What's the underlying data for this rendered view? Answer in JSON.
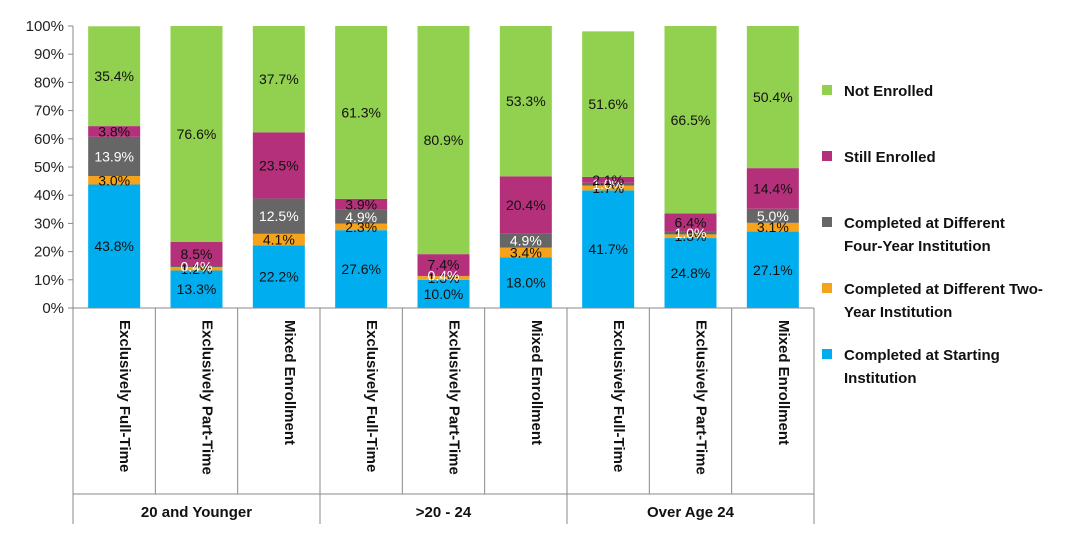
{
  "chart_data": {
    "type": "bar",
    "stacked": true,
    "y_tick_labels": [
      "0%",
      "10%",
      "20%",
      "30%",
      "40%",
      "50%",
      "60%",
      "70%",
      "80%",
      "90%",
      "100%"
    ],
    "ylim": [
      0,
      100
    ],
    "groups": [
      "20 and Younger",
      ">20 - 24",
      "Over Age 24"
    ],
    "categories": [
      "Exclusively Full-Time",
      "Exclusively Part-Time",
      "Mixed Enrollment",
      "Exclusively Full-Time",
      "Exclusively Part-Time",
      "Mixed Enrollment",
      "Exclusively Full-Time",
      "Exclusively Part-Time",
      "Mixed Enrollment"
    ],
    "series": [
      {
        "name": "Completed at Starting Institution",
        "color": "#00AEEF",
        "values": [
          43.8,
          13.3,
          22.2,
          27.6,
          10.0,
          18.0,
          41.7,
          24.8,
          27.1
        ],
        "labels": [
          "43.8%",
          "13.3%",
          "22.2%",
          "27.6%",
          "10.0%",
          "18.0%",
          "41.7%",
          "24.8%",
          "27.1%"
        ]
      },
      {
        "name": "Completed at Different Two-Year Institution",
        "color": "#F7A21B",
        "values": [
          3.0,
          1.2,
          4.1,
          2.3,
          1.3,
          3.4,
          1.7,
          1.3,
          3.1
        ],
        "labels": [
          "3.0%",
          "1.2%",
          "4.1%",
          "2.3%",
          "1.3%",
          "3.4%",
          "1.7%",
          "1.3%",
          "3.1%"
        ]
      },
      {
        "name": "Completed at Different Four-Year Institution",
        "color": "#666666",
        "values": [
          13.9,
          0.4,
          12.5,
          4.9,
          0.4,
          4.9,
          1.0,
          1.0,
          5.0
        ],
        "labels": [
          "13.9%",
          "0.4%",
          "12.5%",
          "4.9%",
          "0.4%",
          "4.9%",
          "1.0%",
          "1.0%",
          "5.0%"
        ]
      },
      {
        "name": "Still Enrolled",
        "color": "#B5307A",
        "values": [
          3.8,
          8.5,
          23.5,
          3.9,
          7.4,
          20.4,
          2.1,
          6.4,
          14.4
        ],
        "labels": [
          "3.8%",
          "8.5%",
          "23.5%",
          "3.9%",
          "7.4%",
          "20.4%",
          "2.1%",
          "6.4%",
          "14.4%"
        ]
      },
      {
        "name": "Not Enrolled",
        "color": "#92D050",
        "values": [
          35.4,
          76.6,
          37.7,
          61.3,
          80.9,
          53.3,
          51.6,
          66.5,
          50.4
        ],
        "labels": [
          "35.4%",
          "76.6%",
          "37.7%",
          "61.3%",
          "80.9%",
          "53.3%",
          "51.6%",
          "66.5%",
          "50.4%"
        ]
      }
    ],
    "legend": {
      "position": "right",
      "entries": [
        {
          "label": "Not Enrolled",
          "color": "#92D050"
        },
        {
          "label": "Still Enrolled",
          "color": "#B5307A"
        },
        {
          "label": "Completed at Different Four-Year Institution",
          "color": "#666666"
        },
        {
          "label": "Completed at Different Two-Year Institution",
          "color": "#F7A21B"
        },
        {
          "label": "Completed at Starting Institution",
          "color": "#00AEEF"
        }
      ]
    },
    "grid": false
  }
}
